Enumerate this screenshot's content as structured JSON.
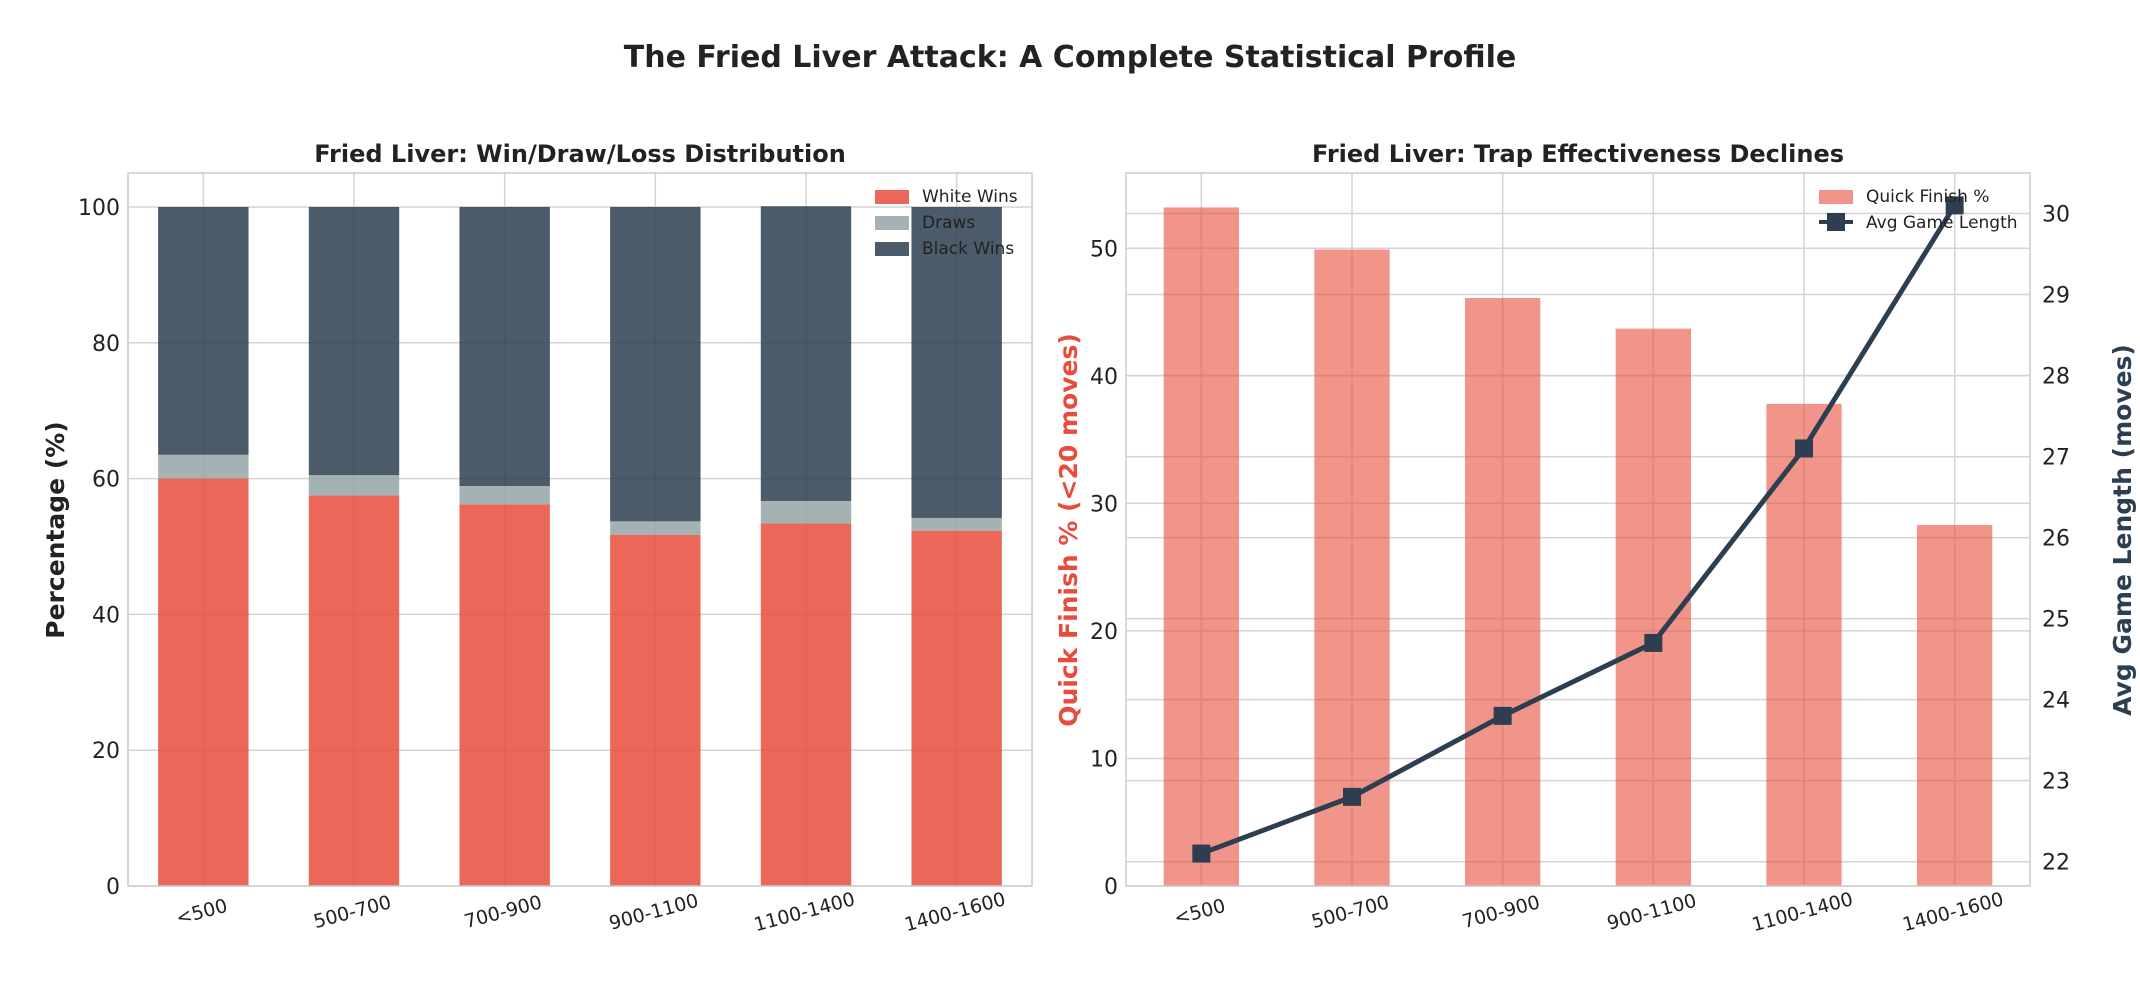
{
  "suptitle": "The Fried Liver Attack: A Complete Statistical Profile",
  "colors": {
    "white_wins": "#e74c3c",
    "draws": "#95a5a6",
    "black_wins": "#2c3e50",
    "quick_finish": "#e74c3c",
    "avg_length": "#2c3e50"
  },
  "chart_data": [
    {
      "type": "bar",
      "stacked": true,
      "title": "Fried Liver: Win/Draw/Loss Distribution",
      "xlabel": "",
      "ylabel": "Percentage (%)",
      "categories": [
        "<500",
        "500-700",
        "700-900",
        "900-1100",
        "1100-1400",
        "1400-1600"
      ],
      "series": [
        {
          "name": "White Wins",
          "values": [
            60.0,
            57.5,
            56.2,
            51.7,
            53.4,
            52.3
          ]
        },
        {
          "name": "Draws",
          "values": [
            3.5,
            3.0,
            2.7,
            2.0,
            3.3,
            1.9
          ]
        },
        {
          "name": "Black Wins",
          "values": [
            36.5,
            39.5,
            41.1,
            46.3,
            43.4,
            45.8
          ]
        }
      ],
      "ylim": [
        0,
        105
      ],
      "yticks": [
        0,
        20,
        40,
        60,
        80,
        100
      ],
      "grid": true,
      "legend": "top-right"
    },
    {
      "type": "bar+line",
      "title": "Fried Liver: Trap Effectiveness Declines",
      "xlabel": "",
      "categories": [
        "<500",
        "500-700",
        "700-900",
        "900-1100",
        "1100-1400",
        "1400-1600"
      ],
      "bar_series": {
        "name": "Quick Finish %",
        "values": [
          53.2,
          49.9,
          46.1,
          43.7,
          37.8,
          28.3
        ]
      },
      "line_series": {
        "name": "Avg Game Length",
        "values": [
          22.1,
          22.8,
          23.8,
          24.7,
          27.1,
          30.1
        ]
      },
      "ylabel_left": "Quick Finish % (<20 moves)",
      "ylabel_right": "Avg Game Length (moves)",
      "ylim_left": [
        0,
        55.9
      ],
      "yticks_left": [
        0,
        10,
        20,
        30,
        40,
        50
      ],
      "ylim_right": [
        21.7,
        30.5
      ],
      "yticks_right": [
        22,
        23,
        24,
        25,
        26,
        27,
        28,
        29,
        30
      ],
      "grid": true,
      "legend": "top-right"
    }
  ]
}
